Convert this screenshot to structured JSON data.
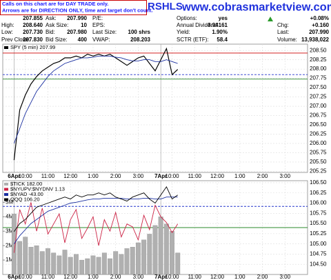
{
  "notice": [
    "Calls on this chart are for DAY TRADE only.",
    "Arrows are for DIRECTION ONLY, time and target don't count."
  ],
  "symbol": "RSHLS",
  "site": "www.cobrasmarketview.com",
  "quote": [
    [
      {
        "value": "207.855"
      },
      {
        "label": "Ask:",
        "value": "207.990"
      },
      {
        "label": "P/E:"
      },
      {
        "label": "Options:",
        "value": "yes"
      },
      {
        "value": "+0.08%"
      }
    ],
    [
      {
        "label": "High:",
        "value": "208.640"
      },
      {
        "label": "Ask Size:",
        "value": "10"
      },
      {
        "label": "EPS:"
      },
      {
        "label": "Annual Dividend:",
        "value": "3.94161"
      },
      {
        "label": "Chg:",
        "value": "+0.160"
      }
    ],
    [
      {
        "label": "Low:",
        "value": "207.730"
      },
      {
        "label": "Bid:",
        "value": "207.980"
      },
      {
        "label": "Last Size:",
        "value": "100 shrs"
      },
      {
        "label": "Yield:",
        "value": "1.90%"
      },
      {
        "label": "Last:",
        "value": "207.990"
      }
    ],
    [
      {
        "label": "Prev Close:",
        "value": "207.830"
      },
      {
        "label": "Bid Size:",
        "value": "400"
      },
      {
        "label": "VWAP:",
        "value": "208.203"
      },
      {
        "label": "SCTR (ETF):",
        "value": "58.4"
      },
      {
        "label": "Volume:",
        "value": "13,938,022"
      }
    ]
  ],
  "chart_data": [
    {
      "type": "line",
      "x": [
        0,
        1,
        2,
        3,
        4,
        5,
        6,
        7,
        8,
        9,
        10,
        11,
        12,
        13,
        14,
        15,
        16,
        17,
        18,
        19,
        20,
        21,
        22,
        23,
        24,
        25,
        26,
        27,
        28,
        29
      ],
      "series": [
        {
          "name": "SPY (5 min) 207.99",
          "color": "#000000",
          "values": [
            205.55,
            206.9,
            207.3,
            207.6,
            207.8,
            207.95,
            208.05,
            208.15,
            208.2,
            208.3,
            208.3,
            208.35,
            208.3,
            208.4,
            208.35,
            208.4,
            208.35,
            208.4,
            208.3,
            208.2,
            208.1,
            208.2,
            208.3,
            208.35,
            208.15,
            207.95,
            208.25,
            208.55,
            207.85,
            207.99
          ]
        },
        {
          "color": "#1a2fa0",
          "values": [
            206.0,
            206.4,
            206.8,
            207.1,
            207.4,
            207.6,
            207.8,
            207.95,
            208.05,
            208.15,
            208.2,
            208.25,
            208.3,
            208.3,
            208.32,
            208.35,
            208.35,
            208.35,
            208.32,
            208.3,
            208.25,
            208.22,
            208.22,
            208.25,
            208.25,
            208.2,
            208.2,
            208.25,
            208.2,
            208.15
          ]
        }
      ],
      "reference_lines": [
        {
          "value": 208.43,
          "color": "#cc0000"
        },
        {
          "value": 207.73,
          "color": "#2a8a2a"
        },
        {
          "value": 207.85,
          "color": "#2233cc",
          "dashed": true
        }
      ],
      "xlim": [
        -2,
        52
      ],
      "xticks": [
        {
          "value": 0,
          "label": "6Apr"
        },
        {
          "value": 2,
          "label": "10:00"
        },
        {
          "value": 6,
          "label": "11:00"
        },
        {
          "value": 10,
          "label": "12:00"
        },
        {
          "value": 14,
          "label": "1:00"
        },
        {
          "value": 18,
          "label": "2:00"
        },
        {
          "value": 22,
          "label": "3:00"
        },
        {
          "value": 26,
          "label": "7Apr"
        },
        {
          "value": 28,
          "label": "10:00"
        },
        {
          "value": 32,
          "label": "11:00"
        },
        {
          "value": 36,
          "label": "12:00"
        },
        {
          "value": 40,
          "label": "1:00"
        },
        {
          "value": 44,
          "label": "2:00"
        },
        {
          "value": 48,
          "label": "3:00"
        }
      ],
      "ylim": [
        205.22,
        208.67
      ],
      "yticks": [
        {
          "value": 208.5,
          "label": "208.50"
        },
        {
          "value": 208.25,
          "label": "208.25"
        },
        {
          "value": 208,
          "label": "208.00"
        },
        {
          "value": 207.75,
          "label": "207.75"
        },
        {
          "value": 207.5,
          "label": "207.50"
        },
        {
          "value": 207.25,
          "label": "207.25"
        },
        {
          "value": 207,
          "label": "207.00"
        },
        {
          "value": 206.75,
          "label": "206.75"
        },
        {
          "value": 206.5,
          "label": "206.50"
        },
        {
          "value": 206.25,
          "label": "206.25"
        },
        {
          "value": 206,
          "label": "206.00"
        },
        {
          "value": 205.75,
          "label": "205.75"
        },
        {
          "value": 205.5,
          "label": "205.50"
        },
        {
          "value": 205.25,
          "label": "205.25"
        }
      ],
      "grid": true
    },
    {
      "type": "line",
      "x": [
        0,
        1,
        2,
        3,
        4,
        5,
        6,
        7,
        8,
        9,
        10,
        11,
        12,
        13,
        14,
        15,
        16,
        17,
        18,
        19,
        20,
        21,
        22,
        23,
        24,
        25,
        26,
        27,
        28,
        29
      ],
      "series": [
        {
          "name": "$TICK 182.00",
          "color": "#b0b0b0",
          "mark": "bar",
          "axis": "y2",
          "values": [
            4.2,
            2.3,
            2.6,
            1.9,
            2.0,
            1.6,
            1.8,
            1.5,
            1.3,
            1.7,
            1.2,
            1.4,
            1.0,
            1.1,
            1.3,
            1.2,
            1.5,
            1.1,
            1.6,
            1.4,
            1.8,
            1.9,
            2.2,
            2.4,
            2.8,
            3.4,
            4.0,
            3.5,
            3.0,
            1.5
          ]
        },
        {
          "name": "$NYUPV:$NYDNV 1.13",
          "color": "#cc2244",
          "axis": "y2",
          "values": [
            1.5,
            4.5,
            3.5,
            5.0,
            3.0,
            4.6,
            2.8,
            3.5,
            4.2,
            2.2,
            3.8,
            4.5,
            2.5,
            3.2,
            4.0,
            2.0,
            3.8,
            3.0,
            4.3,
            2.6,
            3.5,
            3.3,
            2.4,
            4.1,
            3.1,
            4.8,
            4.0,
            3.6,
            2.9,
            3.5
          ]
        },
        {
          "name": "$NYAD -43.00",
          "color": "#1a2fa0",
          "values": [
            105.0,
            105.2,
            105.35,
            105.5,
            105.6,
            105.7,
            105.8,
            105.85,
            105.9,
            105.95,
            106.0,
            106.02,
            106.05,
            106.08,
            106.1,
            106.1,
            106.12,
            106.12,
            106.12,
            106.12,
            106.1,
            106.1,
            106.1,
            106.12,
            106.12,
            106.1,
            106.1,
            106.15,
            106.15,
            106.15
          ]
        },
        {
          "name": "QQQ 106.20",
          "color": "#000000",
          "values": [
            105.3,
            105.5,
            105.6,
            105.75,
            105.9,
            105.95,
            106.0,
            106.05,
            106.1,
            106.15,
            106.1,
            106.2,
            106.15,
            106.2,
            106.2,
            106.25,
            106.2,
            106.25,
            106.15,
            106.1,
            106.05,
            106.15,
            106.2,
            106.25,
            106.1,
            106.0,
            106.2,
            106.4,
            106.1,
            106.2
          ]
        }
      ],
      "reference_lines": [
        {
          "value": 105.4,
          "color": "#2a8a2a"
        },
        {
          "value": 105.92,
          "color": "#2233cc",
          "dashed": true
        }
      ],
      "xlim": [
        -2,
        52
      ],
      "xticks": [
        {
          "value": 0,
          "label": "6Apr"
        },
        {
          "value": 2,
          "label": "10:00"
        },
        {
          "value": 6,
          "label": "11:00"
        },
        {
          "value": 10,
          "label": "12:00"
        },
        {
          "value": 14,
          "label": "1:00"
        },
        {
          "value": 18,
          "label": "2:00"
        },
        {
          "value": 22,
          "label": "3:00"
        },
        {
          "value": 26,
          "label": "7Apr"
        },
        {
          "value": 28,
          "label": "10:00"
        },
        {
          "value": 32,
          "label": "11:00"
        },
        {
          "value": 36,
          "label": "12:00"
        },
        {
          "value": 40,
          "label": "1:00"
        },
        {
          "value": 44,
          "label": "2:00"
        },
        {
          "value": 48,
          "label": "3:00"
        }
      ],
      "ylim": [
        104.25,
        106.55
      ],
      "yticks": [
        {
          "value": 106.5,
          "label": "106.50"
        },
        {
          "value": 106.25,
          "label": "106.25"
        },
        {
          "value": 106,
          "label": "106.00"
        },
        {
          "value": 105.75,
          "label": "105.75"
        },
        {
          "value": 105.5,
          "label": "105.50"
        },
        {
          "value": 105.25,
          "label": "105.25"
        },
        {
          "value": 105,
          "label": "105.00"
        },
        {
          "value": 104.75,
          "label": "104.75"
        },
        {
          "value": 104.5,
          "label": "104.50"
        }
      ],
      "y2lim": [
        0,
        6.5
      ],
      "y2ticks": [
        {
          "value": 1,
          "label": "1M"
        },
        {
          "value": 2,
          "label": "2M"
        },
        {
          "value": 3,
          "label": "3M"
        },
        {
          "value": 4,
          "label": "4M"
        },
        {
          "value": 5,
          "label": "5M"
        }
      ],
      "grid": true
    }
  ]
}
